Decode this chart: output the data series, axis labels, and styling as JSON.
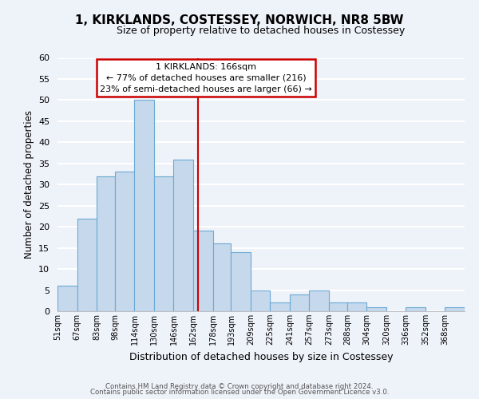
{
  "title": "1, KIRKLANDS, COSTESSEY, NORWICH, NR8 5BW",
  "subtitle": "Size of property relative to detached houses in Costessey",
  "xlabel": "Distribution of detached houses by size in Costessey",
  "ylabel": "Number of detached properties",
  "bar_color": "#c5d8ec",
  "bar_edge_color": "#6aaad4",
  "background_color": "#eef2f9",
  "grid_color": "white",
  "bin_labels": [
    "51sqm",
    "67sqm",
    "83sqm",
    "98sqm",
    "114sqm",
    "130sqm",
    "146sqm",
    "162sqm",
    "178sqm",
    "193sqm",
    "209sqm",
    "225sqm",
    "241sqm",
    "257sqm",
    "273sqm",
    "288sqm",
    "304sqm",
    "320sqm",
    "336sqm",
    "352sqm",
    "368sqm"
  ],
  "bar_heights": [
    6,
    22,
    32,
    33,
    50,
    32,
    36,
    19,
    16,
    14,
    5,
    2,
    4,
    5,
    2,
    2,
    1,
    0,
    1,
    0,
    1
  ],
  "bin_edges": [
    51,
    67,
    83,
    98,
    114,
    130,
    146,
    162,
    178,
    193,
    209,
    225,
    241,
    257,
    273,
    288,
    304,
    320,
    336,
    352,
    368,
    384
  ],
  "vline_x": 166,
  "vline_color": "#cc0000",
  "annotation_line1": "1 KIRKLANDS: 166sqm",
  "annotation_line2": "← 77% of detached houses are smaller (216)",
  "annotation_line3": "23% of semi-detached houses are larger (66) →",
  "annotation_box_color": "white",
  "annotation_box_edge_color": "#cc0000",
  "ylim": [
    0,
    60
  ],
  "yticks": [
    0,
    5,
    10,
    15,
    20,
    25,
    30,
    35,
    40,
    45,
    50,
    55,
    60
  ],
  "footer_line1": "Contains HM Land Registry data © Crown copyright and database right 2024.",
  "footer_line2": "Contains public sector information licensed under the Open Government Licence v3.0."
}
